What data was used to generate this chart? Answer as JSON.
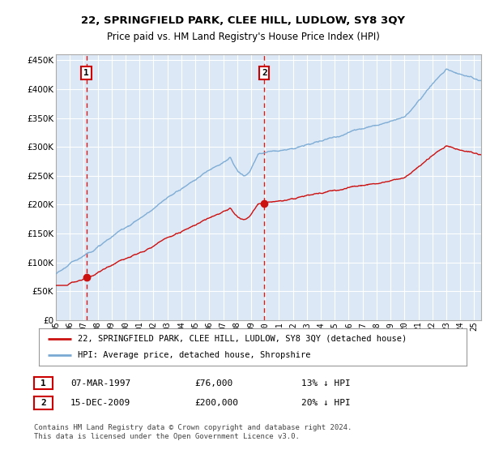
{
  "title": "22, SPRINGFIELD PARK, CLEE HILL, LUDLOW, SY8 3QY",
  "subtitle": "Price paid vs. HM Land Registry's House Price Index (HPI)",
  "legend_line1": "22, SPRINGFIELD PARK, CLEE HILL, LUDLOW, SY8 3QY (detached house)",
  "legend_line2": "HPI: Average price, detached house, Shropshire",
  "footnote": "Contains HM Land Registry data © Crown copyright and database right 2024.\nThis data is licensed under the Open Government Licence v3.0.",
  "sale1_date": "07-MAR-1997",
  "sale1_price": "£76,000",
  "sale1_hpi": "13% ↓ HPI",
  "sale1_year": 1997.18,
  "sale1_value": 76000,
  "sale2_date": "15-DEC-2009",
  "sale2_price": "£200,000",
  "sale2_hpi": "20% ↓ HPI",
  "sale2_year": 2009.95,
  "sale2_value": 200000,
  "hpi_color": "#7aaad4",
  "price_color": "#cc1111",
  "vline_color": "#dd0000",
  "bg_color": "#dce8f5",
  "grid_color": "#ffffff",
  "ylim": [
    0,
    460000
  ],
  "xlim_start": 1995.0,
  "xlim_end": 2025.5,
  "yticks": [
    0,
    50000,
    100000,
    150000,
    200000,
    250000,
    300000,
    350000,
    400000,
    450000
  ]
}
